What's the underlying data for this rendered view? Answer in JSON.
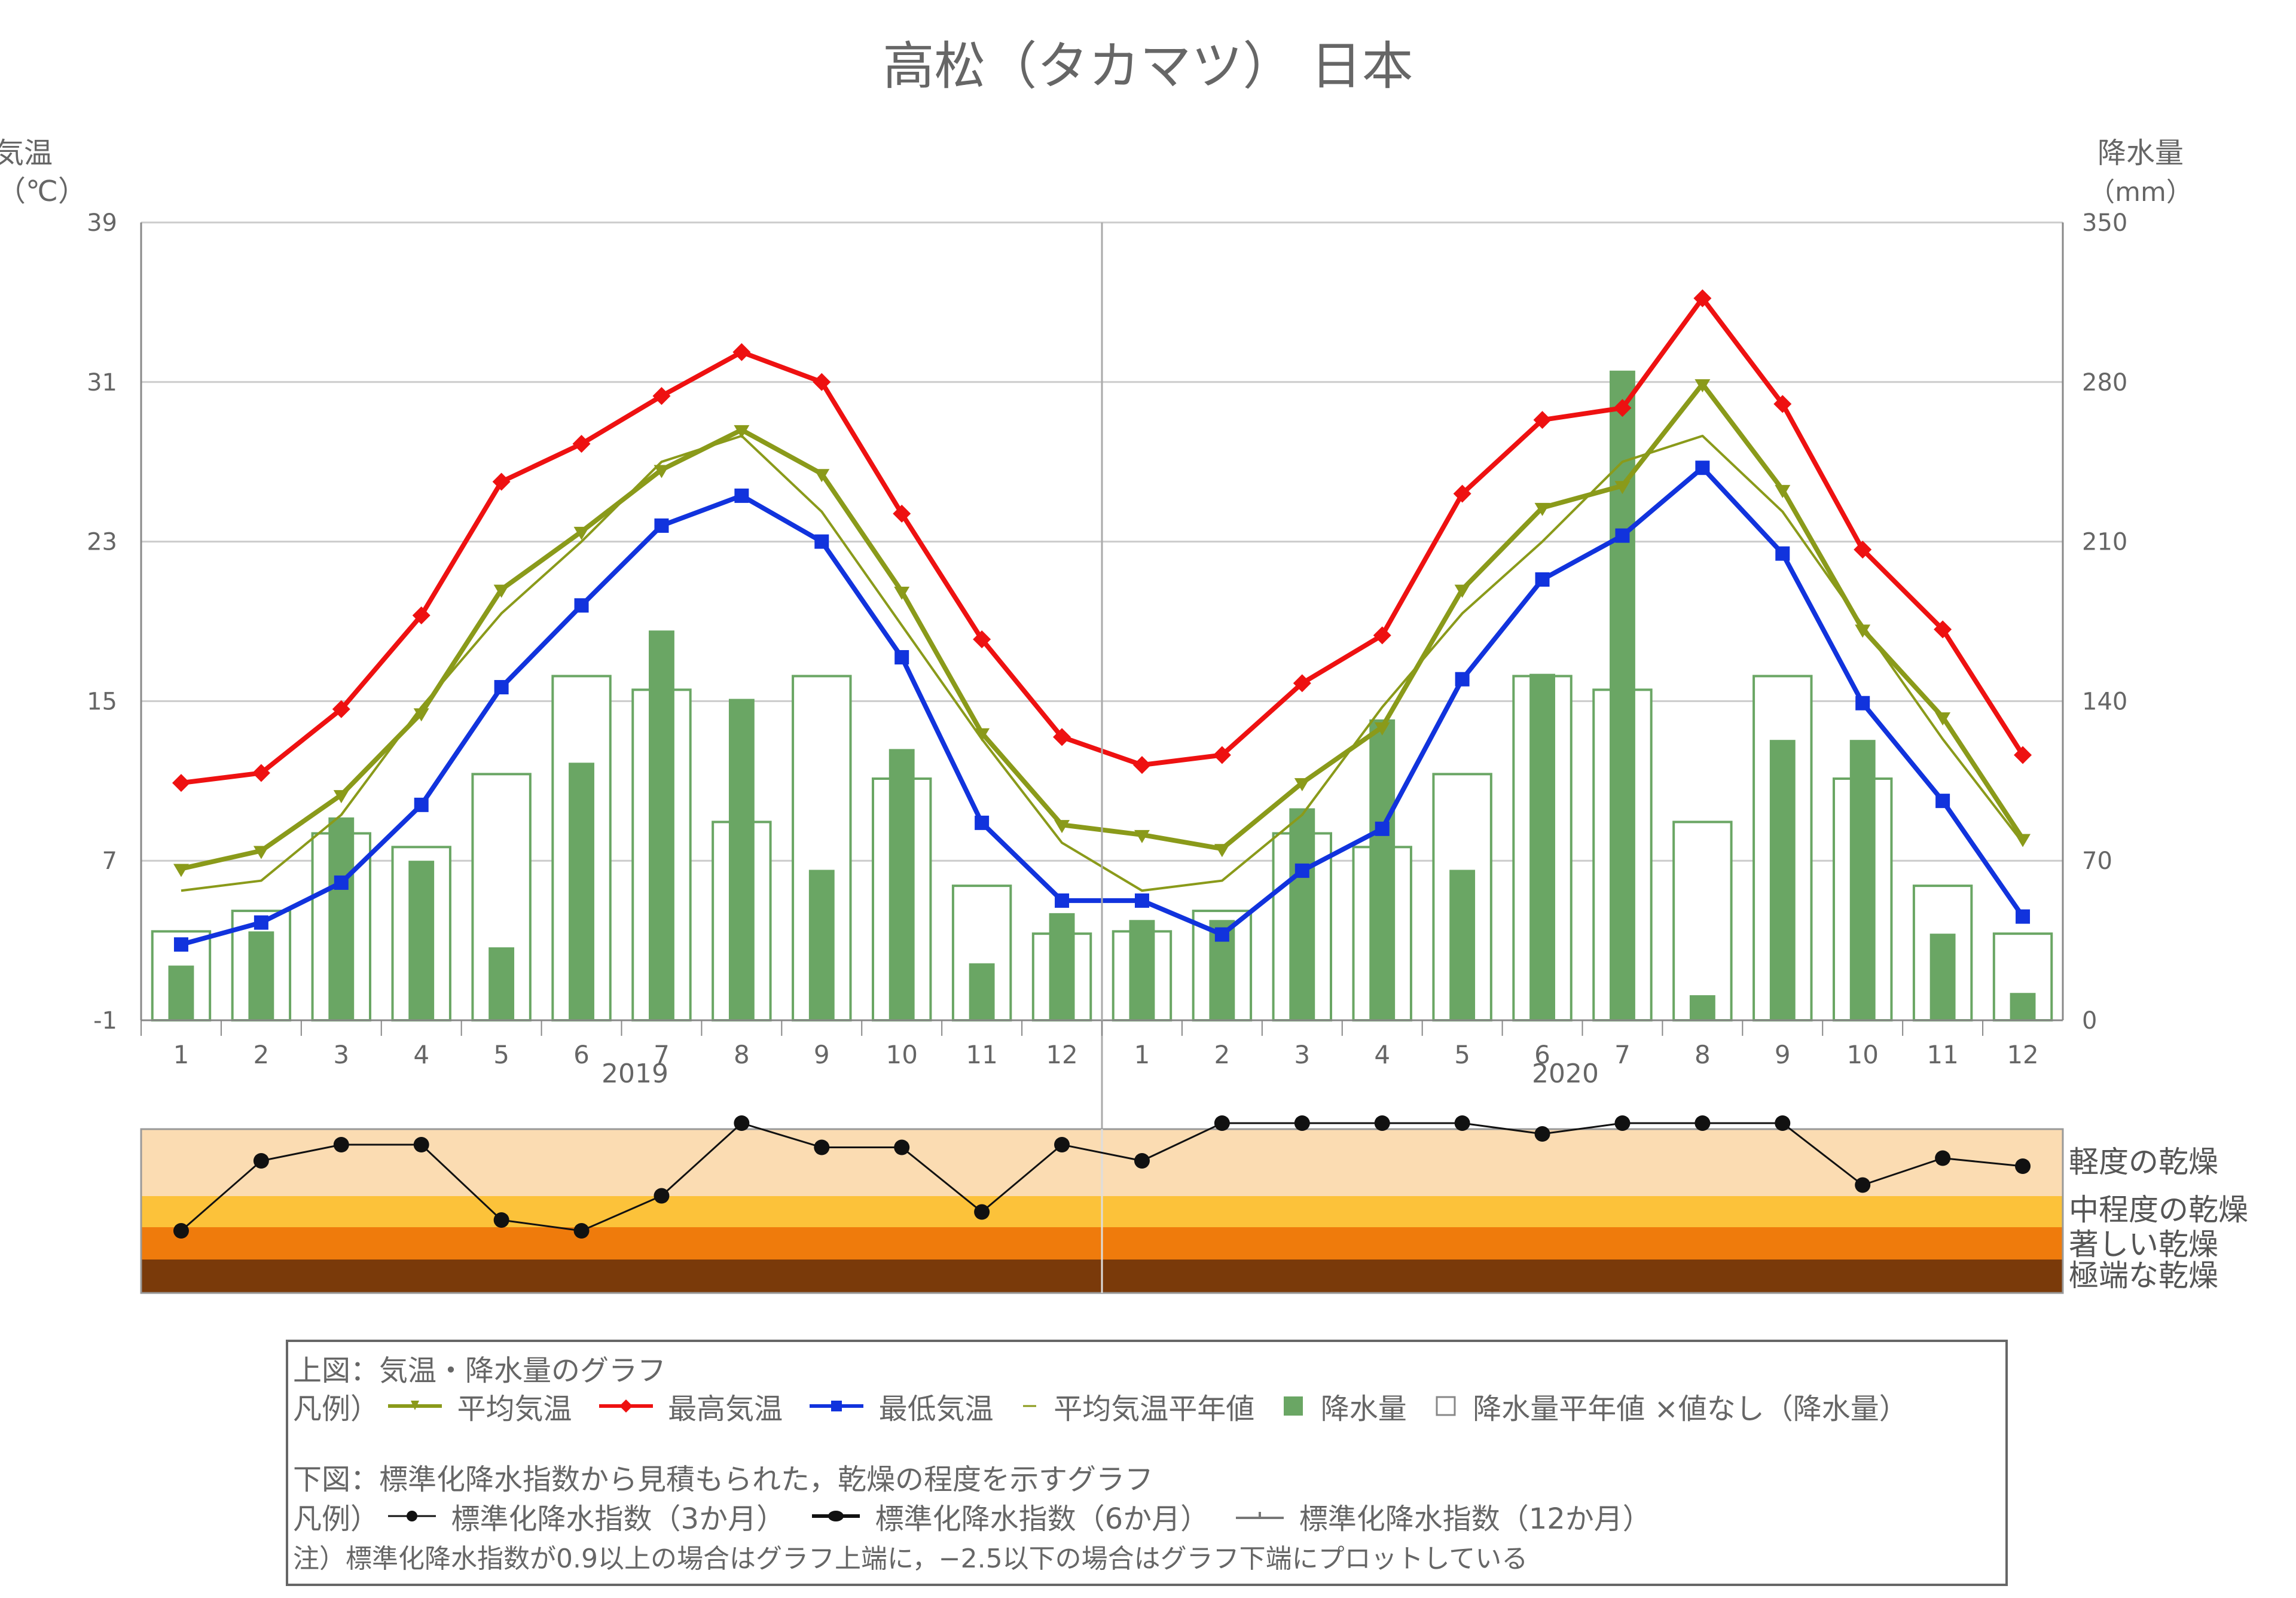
{
  "title": "高松（タカマツ） 日本",
  "colors": {
    "max": "#ee1111",
    "mean": "#8a9a1a",
    "mean_normal": "#8a9a1a",
    "min": "#1133dd",
    "precip": "#6aa664",
    "precip_normal_stroke": "#6aa664",
    "grid": "#cccccc",
    "spi": "#111111",
    "band_light": "#fbdcb2",
    "band_moderate": "#fcc23a",
    "band_severe": "#ef7b0c",
    "band_extreme": "#7a3a0a"
  },
  "chart_data": {
    "type": "line+bar",
    "title": "高松（タカマツ） 日本",
    "left_axis": {
      "label_line1": "気温",
      "label_line2": "（℃）",
      "ylim": [
        -1,
        39
      ],
      "ticks": [
        -1,
        7,
        15,
        23,
        31,
        39
      ]
    },
    "right_axis": {
      "label_line1": "降水量",
      "label_line2": "（mm）",
      "ylim": [
        0,
        350
      ],
      "ticks": [
        0,
        70,
        140,
        210,
        280,
        350
      ]
    },
    "x_ticks": [
      "1",
      "2",
      "3",
      "4",
      "5",
      "6",
      "7",
      "8",
      "9",
      "10",
      "11",
      "12",
      "1",
      "2",
      "3",
      "4",
      "5",
      "6",
      "7",
      "8",
      "9",
      "10",
      "11",
      "12"
    ],
    "years": [
      "2019",
      "2020"
    ],
    "series": [
      {
        "name": "最高気温",
        "key": "max",
        "values": [
          10.9,
          11.4,
          14.6,
          19.3,
          26.0,
          27.9,
          30.3,
          32.5,
          31.0,
          24.4,
          18.1,
          13.2,
          11.8,
          12.3,
          15.9,
          18.3,
          25.4,
          29.1,
          29.7,
          35.2,
          29.9,
          22.6,
          18.6,
          12.3
        ]
      },
      {
        "name": "平均気温",
        "key": "mean",
        "values": [
          6.6,
          7.5,
          10.3,
          14.4,
          20.6,
          23.5,
          26.6,
          28.6,
          26.4,
          20.5,
          13.4,
          8.8,
          8.3,
          7.6,
          10.9,
          13.7,
          20.6,
          24.7,
          25.8,
          30.9,
          25.6,
          18.6,
          14.2,
          8.1
        ]
      },
      {
        "name": "平均気温平年値",
        "key": "mean_normal",
        "values": [
          5.5,
          6.0,
          9.3,
          14.7,
          19.4,
          23.0,
          27.0,
          28.3,
          24.5,
          18.8,
          13.1,
          7.9,
          5.5,
          6.0,
          9.3,
          14.7,
          19.4,
          23.0,
          27.0,
          28.3,
          24.5,
          18.8,
          13.1,
          7.9
        ]
      },
      {
        "name": "最低気温",
        "key": "min",
        "values": [
          2.8,
          3.9,
          5.9,
          9.8,
          15.7,
          19.8,
          23.8,
          25.3,
          23.0,
          17.2,
          8.9,
          5.0,
          5.0,
          3.3,
          6.5,
          8.6,
          16.1,
          21.1,
          23.3,
          26.7,
          22.4,
          14.9,
          10.0,
          4.2
        ]
      },
      {
        "name": "降水量",
        "key": "precip",
        "values": [
          24,
          39,
          89,
          70,
          32,
          113,
          171,
          141,
          66,
          119,
          25,
          47,
          44,
          44,
          93,
          132,
          66,
          152,
          285,
          11,
          123,
          123,
          38,
          12
        ]
      },
      {
        "name": "降水量平年値",
        "key": "precip_normal",
        "values": [
          39,
          48,
          82,
          76,
          108,
          151,
          145,
          87,
          151,
          106,
          59,
          38,
          39,
          48,
          82,
          76,
          108,
          151,
          145,
          87,
          151,
          106,
          59,
          38
        ]
      }
    ],
    "spi": {
      "name": "標準化降水指数（3か月）",
      "values": [
        -1.05,
        0.25,
        0.55,
        0.55,
        -0.85,
        -1.05,
        -0.4,
        0.95,
        0.5,
        0.5,
        -0.7,
        0.55,
        0.25,
        0.95,
        0.95,
        0.95,
        0.95,
        0.75,
        0.95,
        0.95,
        0.95,
        -0.2,
        0.3,
        0.15
      ],
      "bands": [
        "軽度の乾燥",
        "中程度の乾燥",
        "著しい乾燥",
        "極端な乾燥"
      ]
    }
  },
  "legend": {
    "upper_title": "上図：気温・降水量のグラフ",
    "upper_prefix": "凡例）",
    "upper_items": {
      "mean": "平均気温",
      "max": "最高気温",
      "min": "最低気温",
      "mean_normal": "平均気温平年値",
      "precip": "降水量",
      "precip_normal": "降水量平年値",
      "no_value": "×値なし（降水量）"
    },
    "lower_title": "下図：標準化降水指数から見積もられた，乾燥の程度を示すグラフ",
    "lower_prefix": "凡例）",
    "spi_items": {
      "spi3": "標準化降水指数（3か月）",
      "spi6": "標準化降水指数（6か月）",
      "spi12": "標準化降水指数（12か月）"
    },
    "note": "注）標準化降水指数が0.9以上の場合はグラフ上端に，−2.5以下の場合はグラフ下端にプロットしている"
  }
}
